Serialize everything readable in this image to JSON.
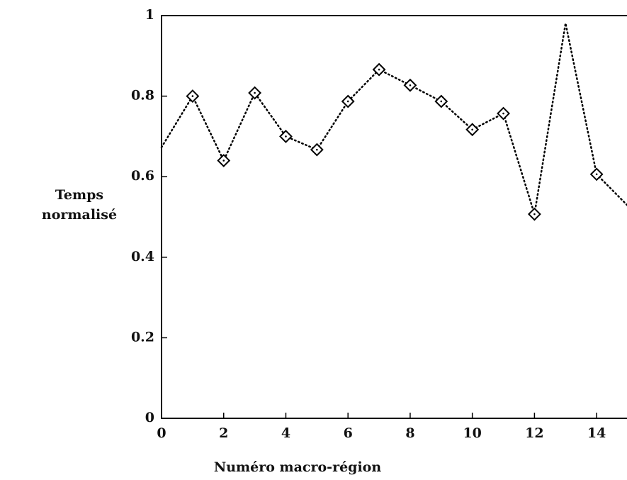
{
  "chart_data": {
    "type": "line",
    "xlabel": "Numéro macro-région",
    "ylabel": [
      "Temps",
      "normalisé"
    ],
    "x": [
      0,
      1,
      2,
      3,
      4,
      5,
      6,
      7,
      8,
      9,
      10,
      11,
      12,
      13,
      14,
      15
    ],
    "series": [
      {
        "color": "#000000",
        "style": "dotted",
        "values": [
          0.673,
          0.8,
          0.64,
          0.808,
          0.7,
          0.667,
          0.787,
          0.866,
          0.827,
          0.787,
          0.717,
          0.757,
          0.507,
          0.981,
          0.606,
          0.528
        ]
      },
      {
        "color": "#000000",
        "marker": "diamond",
        "values": [
          null,
          0.8,
          0.64,
          0.808,
          0.7,
          0.667,
          0.787,
          0.866,
          0.827,
          0.787,
          0.717,
          0.757,
          0.507,
          null,
          0.606,
          null
        ]
      }
    ],
    "xlim": [
      0,
      15
    ],
    "xticks": [
      0,
      2,
      4,
      6,
      8,
      10,
      12,
      14
    ],
    "ylim": [
      0,
      1
    ],
    "yticks": [
      0,
      0.2,
      0.4,
      0.6,
      0.8,
      1
    ]
  }
}
